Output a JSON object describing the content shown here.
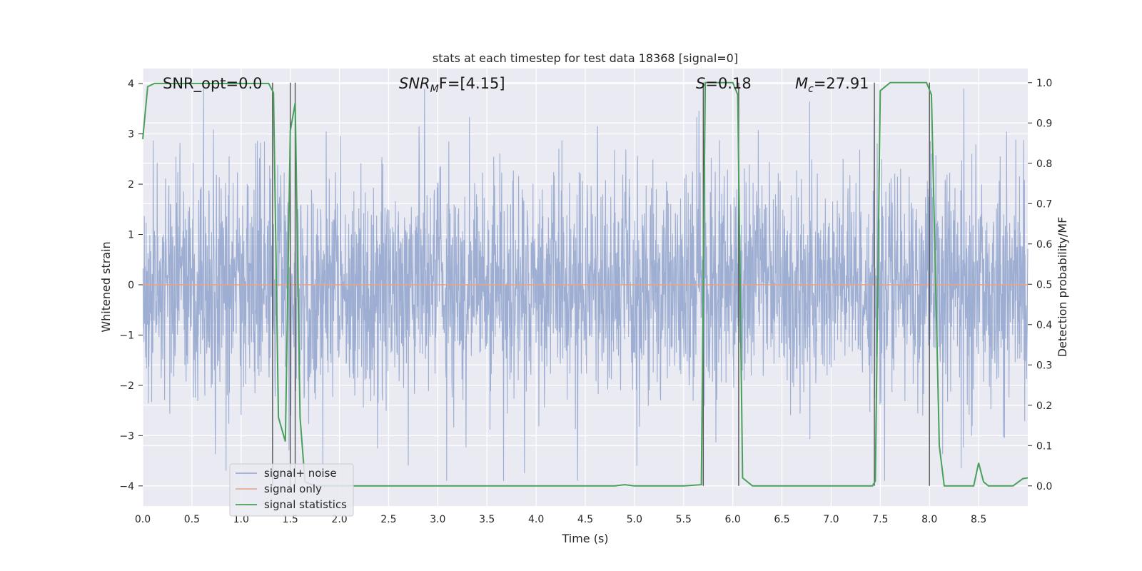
{
  "chart_data": {
    "type": "line",
    "title": "stats at each timestep for test data 18368 [signal=0]",
    "xlabel": "Time (s)",
    "ylabel": "Whitened strain",
    "ylabel_right": "Detection probability/MF",
    "xlim": [
      0,
      9.0
    ],
    "ylim": [
      -4.4,
      4.3
    ],
    "ylim_right": [
      -0.05,
      1.035
    ],
    "x_ticks": [
      0.0,
      0.5,
      1.0,
      1.5,
      2.0,
      2.5,
      3.0,
      3.5,
      4.0,
      4.5,
      5.0,
      5.5,
      6.0,
      6.5,
      7.0,
      7.5,
      8.0,
      8.5
    ],
    "x_tick_labels": [
      "0.0",
      "0.5",
      "1.0",
      "1.5",
      "2.0",
      "2.5",
      "3.0",
      "3.5",
      "4.0",
      "4.5",
      "5.0",
      "5.5",
      "6.0",
      "6.5",
      "7.0",
      "7.5",
      "8.0",
      "8.5"
    ],
    "y_ticks": [
      -4,
      -3,
      -2,
      -1,
      0,
      1,
      2,
      3,
      4
    ],
    "y_tick_labels": [
      "−4",
      "−3",
      "−2",
      "−1",
      "0",
      "1",
      "2",
      "3",
      "4"
    ],
    "y_right_ticks": [
      0.0,
      0.1,
      0.2,
      0.3,
      0.4,
      0.5,
      0.6,
      0.7,
      0.8,
      0.9,
      1.0
    ],
    "y_right_tick_labels": [
      "0.0",
      "0.1",
      "0.2",
      "0.3",
      "0.4",
      "0.5",
      "0.6",
      "0.7",
      "0.8",
      "0.9",
      "1.0"
    ],
    "grid": true,
    "legend_position": "lower-left",
    "annotations": {
      "snr_opt": "SNR_opt=0.0",
      "snr_mf_main": "SNR",
      "snr_mf_sub": "M",
      "snr_mf_rest": "F=[4.15]",
      "s_main": "S",
      "s_rest": "=0.18",
      "mc_main": "M",
      "mc_sub": "c",
      "mc_rest": "=27.91"
    },
    "series": [
      {
        "name": "signal+ noise",
        "color": "#8fa3cc",
        "noise_envelope": {
          "typical_abs": 1.6,
          "peak_max": 3.9,
          "peak_min": -3.9,
          "sample_rate_hz": 200
        }
      },
      {
        "name": "signal only",
        "color": "#e8a286",
        "x": [
          0,
          9.0
        ],
        "y": [
          0,
          0
        ]
      },
      {
        "name": "signal statistics",
        "color": "#4aa05a",
        "x": [
          0.0,
          0.05,
          0.12,
          0.3,
          0.6,
          0.9,
          1.2,
          1.28,
          1.33,
          1.38,
          1.45,
          1.5,
          1.55,
          1.6,
          1.65,
          1.75,
          2.0,
          3.0,
          4.0,
          4.8,
          4.9,
          5.0,
          5.5,
          5.68,
          5.72,
          5.8,
          6.0,
          6.05,
          6.1,
          6.2,
          6.5,
          7.0,
          7.42,
          7.45,
          7.5,
          7.6,
          7.8,
          7.97,
          8.02,
          8.1,
          8.15,
          8.3,
          8.45,
          8.5,
          8.55,
          8.6,
          8.75,
          8.85,
          8.95,
          9.0
        ],
        "y": [
          0.86,
          0.99,
          0.998,
          0.998,
          0.998,
          0.998,
          0.998,
          0.998,
          0.975,
          0.17,
          0.11,
          0.88,
          0.95,
          0.17,
          0.01,
          0.0,
          0.0,
          0.0,
          0.0,
          0.0,
          0.003,
          0.0,
          0.0,
          0.003,
          1.0,
          1.0,
          1.0,
          0.97,
          0.02,
          0.0,
          0.0,
          0.0,
          0.0,
          0.012,
          0.98,
          1.0,
          1.0,
          1.0,
          0.97,
          0.1,
          0.0,
          0.0,
          0.0,
          0.057,
          0.01,
          0.0,
          0.0,
          0.0,
          0.018,
          0.02
        ]
      }
    ],
    "vertical_lines_x": [
      1.32,
      1.5,
      1.55,
      5.7,
      6.06,
      7.44,
      8.0
    ]
  }
}
